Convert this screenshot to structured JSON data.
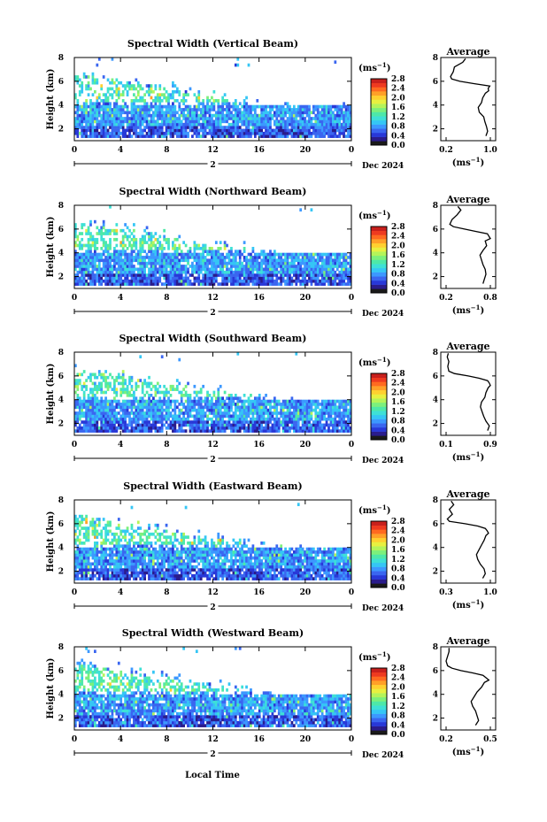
{
  "colors": [
    "#1a1a1a",
    "#2a1c8c",
    "#2838d8",
    "#3a66f0",
    "#3c98ff",
    "#35c6f5",
    "#3ee0d6",
    "#4ee8a8",
    "#7cf07c",
    "#b4f45a",
    "#e8f040",
    "#ffd030",
    "#ffa028",
    "#ff6a20",
    "#ee3a20",
    "#c8201c"
  ],
  "shared": {
    "xlabel": "Local Time",
    "month_label": "Dec 2024",
    "day_label": "2",
    "ylabel": "Height (km)",
    "unit_label": "(ms",
    "unit_sup": "−1",
    "avg_title": "Average",
    "x_ticks": [
      "0",
      "4",
      "8",
      "12",
      "16",
      "20",
      "0"
    ],
    "y_ticks": [
      "8",
      "6",
      "4",
      "2"
    ],
    "cb_ticks": [
      "2.8",
      "2.4",
      "2.0",
      "1.6",
      "1.2",
      "0.8",
      "0.4",
      "0.0"
    ]
  },
  "chart_data": [
    {
      "type": "heatmap",
      "title": "Spectral Width (Vertical Beam)",
      "xlim": [
        0,
        24
      ],
      "ylim": [
        1,
        8
      ],
      "clim": [
        0,
        2.8
      ],
      "avg": {
        "title": "Average",
        "xlim": [
          0.2,
          1.0
        ],
        "xticks": [
          "0.2",
          "1.0"
        ],
        "x": [
          0.92,
          0.95,
          0.93,
          0.9,
          0.88,
          0.8,
          0.78,
          0.84,
          0.86,
          0.91,
          0.97,
          0.96,
          0.99,
          0.7,
          0.45,
          0.3,
          0.28,
          0.33,
          0.35,
          0.5,
          0.55
        ],
        "y": [
          1.4,
          1.8,
          2.2,
          2.6,
          3.0,
          3.4,
          3.8,
          4.2,
          4.6,
          5.0,
          5.2,
          5.4,
          5.6,
          5.8,
          6.0,
          6.2,
          6.4,
          6.8,
          7.2,
          7.6,
          7.9
        ]
      }
    },
    {
      "type": "heatmap",
      "title": "Spectral Width (Northward Beam)",
      "xlim": [
        0,
        24
      ],
      "ylim": [
        1,
        8
      ],
      "clim": [
        0,
        2.8
      ],
      "avg": {
        "title": "Average",
        "xlim": [
          0.2,
          0.8
        ],
        "xticks": [
          "0.2",
          "0.8"
        ],
        "x": [
          0.7,
          0.72,
          0.74,
          0.73,
          0.7,
          0.68,
          0.66,
          0.7,
          0.75,
          0.73,
          0.8,
          0.78,
          0.76,
          0.6,
          0.45,
          0.3,
          0.25,
          0.28,
          0.35,
          0.4,
          0.36
        ],
        "y": [
          1.4,
          1.8,
          2.2,
          2.6,
          3.0,
          3.4,
          3.8,
          4.2,
          4.6,
          5.0,
          5.2,
          5.4,
          5.6,
          5.8,
          6.0,
          6.2,
          6.4,
          6.8,
          7.2,
          7.6,
          7.9
        ]
      }
    },
    {
      "type": "heatmap",
      "title": "Spectral Width (Southward Beam)",
      "xlim": [
        0,
        24
      ],
      "ylim": [
        1,
        8
      ],
      "clim": [
        0,
        2.8
      ],
      "avg": {
        "title": "Average",
        "xlim": [
          0.1,
          0.9
        ],
        "xticks": [
          "0.1",
          "0.9"
        ],
        "x": [
          0.85,
          0.88,
          0.82,
          0.78,
          0.75,
          0.72,
          0.74,
          0.8,
          0.82,
          0.86,
          0.9,
          0.88,
          0.85,
          0.7,
          0.5,
          0.25,
          0.15,
          0.13,
          0.15,
          0.12,
          0.14
        ],
        "y": [
          1.4,
          1.8,
          2.2,
          2.6,
          3.0,
          3.4,
          3.8,
          4.2,
          4.6,
          5.0,
          5.2,
          5.4,
          5.6,
          5.8,
          6.0,
          6.2,
          6.4,
          6.8,
          7.2,
          7.6,
          7.9
        ]
      }
    },
    {
      "type": "heatmap",
      "title": "Spectral Width (Eastward Beam)",
      "xlim": [
        0,
        24
      ],
      "ylim": [
        1,
        8
      ],
      "clim": [
        0,
        2.8
      ],
      "avg": {
        "title": "Average",
        "xlim": [
          0.3,
          1.0
        ],
        "xticks": [
          "0.3",
          "1.0"
        ],
        "x": [
          0.88,
          0.92,
          0.9,
          0.84,
          0.8,
          0.78,
          0.82,
          0.86,
          0.9,
          0.93,
          0.97,
          0.95,
          0.92,
          0.8,
          0.6,
          0.35,
          0.32,
          0.4,
          0.35,
          0.42,
          0.38
        ],
        "y": [
          1.4,
          1.8,
          2.2,
          2.6,
          3.0,
          3.4,
          3.8,
          4.2,
          4.6,
          5.0,
          5.2,
          5.4,
          5.6,
          5.8,
          6.0,
          6.2,
          6.4,
          6.8,
          7.2,
          7.6,
          7.9
        ]
      }
    },
    {
      "type": "heatmap",
      "title": "Spectral Width (Westward Beam)",
      "xlim": [
        0,
        24
      ],
      "ylim": [
        1,
        8
      ],
      "clim": [
        0,
        2.8
      ],
      "avg": {
        "title": "Average",
        "xlim": [
          0.2,
          0.5
        ],
        "xticks": [
          "0.2",
          "0.5"
        ],
        "x": [
          0.4,
          0.42,
          0.41,
          0.4,
          0.38,
          0.37,
          0.39,
          0.41,
          0.44,
          0.46,
          0.49,
          0.47,
          0.45,
          0.38,
          0.3,
          0.24,
          0.21,
          0.2,
          0.21,
          0.22,
          0.22
        ],
        "y": [
          1.4,
          1.8,
          2.2,
          2.6,
          3.0,
          3.4,
          3.8,
          4.2,
          4.6,
          5.0,
          5.2,
          5.4,
          5.6,
          5.8,
          6.0,
          6.2,
          6.4,
          6.8,
          7.2,
          7.6,
          7.9
        ]
      }
    }
  ]
}
